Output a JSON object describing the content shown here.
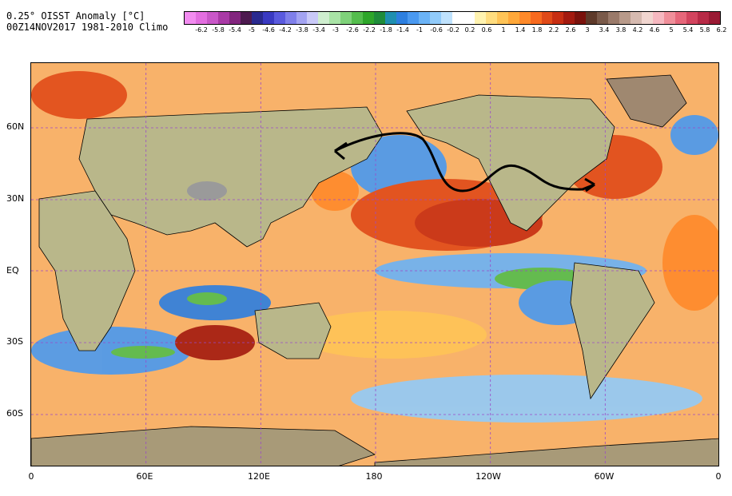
{
  "header": {
    "line1": "0.25° OISST Anomaly [°C]",
    "line2": "00Z14NOV2017 1981-2010 Climo"
  },
  "colorbar": {
    "colors": [
      "#f28cf0",
      "#e36ee0",
      "#c957c8",
      "#a93aa6",
      "#82257e",
      "#4d1a4f",
      "#2a2a8f",
      "#3a3ac2",
      "#5a5ade",
      "#7f7fea",
      "#a3a3f2",
      "#c9c9f8",
      "#cfeecf",
      "#a9e3a6",
      "#7fd27a",
      "#54bd4d",
      "#2ea62a",
      "#1f8c3a",
      "#1f8fb0",
      "#2d7fe0",
      "#4a99f0",
      "#6bb3f6",
      "#91cbfa",
      "#bfe2fd",
      "#ffffff",
      "#ffffff",
      "#fff3b0",
      "#ffdd7f",
      "#ffc457",
      "#ffa83a",
      "#ff8a2a",
      "#f76a1f",
      "#e04a18",
      "#c72e12",
      "#a31a0f",
      "#7a120c",
      "#5e3a2a",
      "#7a5a4a",
      "#9a7a6a",
      "#b89a8a",
      "#d6bab0",
      "#f1d6d0",
      "#f6b8c0",
      "#f08f9a",
      "#e6677a",
      "#d2445e",
      "#b72a46",
      "#9a1a34"
    ],
    "tick_labels": [
      "-6.2",
      "-5.8",
      "-5.4",
      "-5",
      "-4.6",
      "-4.2",
      "-3.8",
      "-3.4",
      "-3",
      "-2.6",
      "-2.2",
      "-1.8",
      "-1.4",
      "-1",
      "-0.6",
      "-0.2",
      "0.2",
      "0.6",
      "1",
      "1.4",
      "1.8",
      "2.2",
      "2.6",
      "3",
      "3.4",
      "3.8",
      "4.2",
      "4.6",
      "5",
      "5.4",
      "5.8",
      "6.2"
    ]
  },
  "axes": {
    "lat_labels": [
      "60N",
      "30N",
      "EQ",
      "30S",
      "60S"
    ],
    "lon_labels": [
      "0",
      "60E",
      "120E",
      "180",
      "120W",
      "60W",
      "0"
    ]
  }
}
